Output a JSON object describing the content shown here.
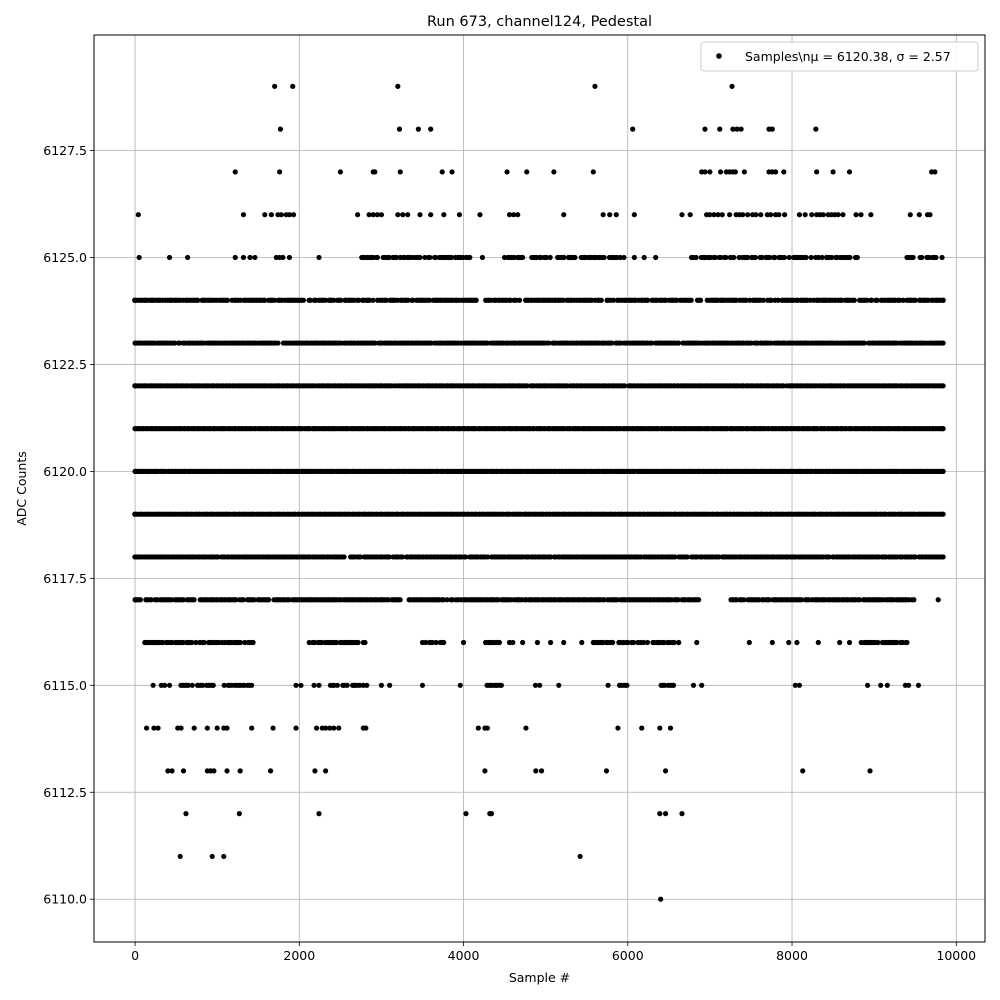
{
  "chart_data": {
    "type": "scatter",
    "title": "Run 673, channel124, Pedestal",
    "xlabel": "Sample #",
    "ylabel": "ADC Counts",
    "xlim": [
      -500,
      10350
    ],
    "ylim": [
      6109,
      6130.2
    ],
    "grid": true,
    "legend_placement": "top-right",
    "marker_color": "#000000",
    "x_ticks": [
      0,
      2000,
      4000,
      6000,
      8000,
      10000
    ],
    "x_tick_labels": [
      "0",
      "2000",
      "4000",
      "6000",
      "8000",
      "10000"
    ],
    "y_ticks": [
      6110.0,
      6112.5,
      6115.0,
      6117.5,
      6120.0,
      6122.5,
      6125.0,
      6127.5
    ],
    "y_tick_labels": [
      "6110.0",
      "6112.5",
      "6115.0",
      "6117.5",
      "6120.0",
      "6122.5",
      "6125.0",
      "6127.5"
    ],
    "legend_entry": "Samples\\nμ = 6120.38, σ = 2.57",
    "series": [
      {
        "name": "Samples\\nμ = 6120.38, σ = 2.57",
        "points": [
          [
            1700,
            6129
          ],
          [
            1920,
            6129
          ],
          [
            3200,
            6129
          ],
          [
            5600,
            6129
          ],
          [
            7270,
            6129
          ],
          [
            1770,
            6128
          ],
          [
            3220,
            6128
          ],
          [
            3450,
            6128
          ],
          [
            3600,
            6128
          ],
          [
            6060,
            6128
          ],
          [
            6940,
            6128
          ],
          [
            7120,
            6128
          ],
          [
            7280,
            6128
          ],
          [
            7330,
            6128
          ],
          [
            7380,
            6128
          ],
          [
            7720,
            6128
          ],
          [
            7760,
            6128
          ],
          [
            8290,
            6128
          ],
          [
            1220,
            6127
          ],
          [
            1760,
            6127
          ],
          [
            2500,
            6127
          ],
          [
            2900,
            6127
          ],
          [
            2920,
            6127
          ],
          [
            3230,
            6127
          ],
          [
            3740,
            6127
          ],
          [
            3860,
            6127
          ],
          [
            4530,
            6127
          ],
          [
            4770,
            6127
          ],
          [
            5100,
            6127
          ],
          [
            5580,
            6127
          ],
          [
            6900,
            6127
          ],
          [
            6940,
            6127
          ],
          [
            7000,
            6127
          ],
          [
            7130,
            6127
          ],
          [
            7200,
            6127
          ],
          [
            7240,
            6127
          ],
          [
            7280,
            6127
          ],
          [
            7310,
            6127
          ],
          [
            7420,
            6127
          ],
          [
            7720,
            6127
          ],
          [
            7760,
            6127
          ],
          [
            7800,
            6127
          ],
          [
            7900,
            6127
          ],
          [
            8300,
            6127
          ],
          [
            8500,
            6127
          ],
          [
            8700,
            6127
          ],
          [
            9700,
            6127
          ],
          [
            9740,
            6127
          ],
          [
            40,
            6126
          ],
          [
            1320,
            6126
          ],
          [
            1580,
            6126
          ],
          [
            1660,
            6126
          ],
          [
            1740,
            6126
          ],
          [
            1780,
            6126
          ],
          [
            1840,
            6126
          ],
          [
            1880,
            6126
          ],
          [
            1930,
            6126
          ],
          [
            2710,
            6126
          ],
          [
            2850,
            6126
          ],
          [
            2900,
            6126
          ],
          [
            2950,
            6126
          ],
          [
            3000,
            6126
          ],
          [
            3200,
            6126
          ],
          [
            3260,
            6126
          ],
          [
            3320,
            6126
          ],
          [
            3470,
            6126
          ],
          [
            3600,
            6126
          ],
          [
            3760,
            6126
          ],
          [
            3950,
            6126
          ],
          [
            4200,
            6126
          ],
          [
            4560,
            6126
          ],
          [
            4610,
            6126
          ],
          [
            4660,
            6126
          ],
          [
            5220,
            6126
          ],
          [
            5700,
            6126
          ],
          [
            5780,
            6126
          ],
          [
            5860,
            6126
          ],
          [
            6080,
            6126
          ],
          [
            6660,
            6126
          ],
          [
            6760,
            6126
          ],
          [
            6960,
            6126
          ],
          [
            7000,
            6126
          ],
          [
            7050,
            6126
          ],
          [
            7100,
            6126
          ],
          [
            7150,
            6126
          ],
          [
            7240,
            6126
          ],
          [
            7320,
            6126
          ],
          [
            7360,
            6126
          ],
          [
            7400,
            6126
          ],
          [
            7460,
            6126
          ],
          [
            7520,
            6126
          ],
          [
            7560,
            6126
          ],
          [
            7620,
            6126
          ],
          [
            7700,
            6126
          ],
          [
            7740,
            6126
          ],
          [
            7800,
            6126
          ],
          [
            7840,
            6126
          ],
          [
            7910,
            6126
          ],
          [
            8090,
            6126
          ],
          [
            8160,
            6126
          ],
          [
            8240,
            6126
          ],
          [
            8300,
            6126
          ],
          [
            8340,
            6126
          ],
          [
            8380,
            6126
          ],
          [
            8440,
            6126
          ],
          [
            8480,
            6126
          ],
          [
            8520,
            6126
          ],
          [
            8560,
            6126
          ],
          [
            8620,
            6126
          ],
          [
            8780,
            6126
          ],
          [
            8840,
            6126
          ],
          [
            8960,
            6126
          ],
          [
            9440,
            6126
          ],
          [
            9550,
            6126
          ],
          [
            9650,
            6126
          ],
          [
            9680,
            6126
          ],
          [
            50,
            6125
          ],
          [
            420,
            6125
          ],
          [
            640,
            6125
          ],
          [
            1220,
            6125
          ],
          [
            1320,
            6125
          ],
          [
            1400,
            6125
          ],
          [
            1460,
            6125
          ],
          [
            1720,
            6125
          ],
          [
            1760,
            6125
          ],
          [
            1800,
            6125
          ],
          [
            1880,
            6125
          ],
          [
            2240,
            6125
          ],
          [
            2900,
            6125
          ],
          [
            4230,
            6125
          ],
          [
            5280,
            6125
          ],
          [
            6080,
            6125
          ],
          [
            6200,
            6125
          ],
          [
            6340,
            6125
          ],
          [
            0,
            6124
          ],
          [
            9840,
            6124
          ],
          [
            0,
            6123
          ],
          [
            9840,
            6123
          ],
          [
            0,
            6122
          ],
          [
            9840,
            6122
          ],
          [
            0,
            6121
          ],
          [
            9840,
            6121
          ],
          [
            0,
            6120
          ],
          [
            9840,
            6120
          ],
          [
            0,
            6119
          ],
          [
            9840,
            6119
          ],
          [
            0,
            6118
          ],
          [
            9840,
            6118
          ],
          [
            0,
            6117
          ],
          [
            9780,
            6117
          ],
          [
            120,
            6116
          ],
          [
            2800,
            6116
          ],
          [
            3500,
            6116
          ],
          [
            4000,
            6116
          ],
          [
            4560,
            6116
          ],
          [
            4600,
            6116
          ],
          [
            4720,
            6116
          ],
          [
            4900,
            6116
          ],
          [
            5060,
            6116
          ],
          [
            5220,
            6116
          ],
          [
            5440,
            6116
          ],
          [
            5700,
            6116
          ],
          [
            6620,
            6116
          ],
          [
            6840,
            6116
          ],
          [
            7480,
            6116
          ],
          [
            7760,
            6116
          ],
          [
            7960,
            6116
          ],
          [
            8060,
            6116
          ],
          [
            8320,
            6116
          ],
          [
            8580,
            6116
          ],
          [
            8700,
            6116
          ],
          [
            8950,
            6116
          ],
          [
            9130,
            6116
          ],
          [
            9400,
            6116
          ],
          [
            220,
            6115
          ],
          [
            320,
            6115
          ],
          [
            360,
            6115
          ],
          [
            420,
            6115
          ],
          [
            1960,
            6115
          ],
          [
            2020,
            6115
          ],
          [
            2180,
            6115
          ],
          [
            2240,
            6115
          ],
          [
            3000,
            6115
          ],
          [
            3100,
            6115
          ],
          [
            3500,
            6115
          ],
          [
            3960,
            6115
          ],
          [
            5160,
            6115
          ],
          [
            5760,
            6115
          ],
          [
            5920,
            6115
          ],
          [
            6800,
            6115
          ],
          [
            6900,
            6115
          ],
          [
            8040,
            6115
          ],
          [
            8090,
            6115
          ],
          [
            8920,
            6115
          ],
          [
            9080,
            6115
          ],
          [
            9160,
            6115
          ],
          [
            9380,
            6115
          ],
          [
            9420,
            6115
          ],
          [
            9540,
            6115
          ],
          [
            140,
            6114
          ],
          [
            230,
            6114
          ],
          [
            280,
            6114
          ],
          [
            520,
            6114
          ],
          [
            560,
            6114
          ],
          [
            720,
            6114
          ],
          [
            880,
            6114
          ],
          [
            1000,
            6114
          ],
          [
            1080,
            6114
          ],
          [
            1120,
            6114
          ],
          [
            1420,
            6114
          ],
          [
            1680,
            6114
          ],
          [
            1960,
            6114
          ],
          [
            2210,
            6114
          ],
          [
            2280,
            6114
          ],
          [
            2320,
            6114
          ],
          [
            2370,
            6114
          ],
          [
            2420,
            6114
          ],
          [
            2480,
            6114
          ],
          [
            2780,
            6114
          ],
          [
            2810,
            6114
          ],
          [
            4180,
            6114
          ],
          [
            4260,
            6114
          ],
          [
            4290,
            6114
          ],
          [
            4760,
            6114
          ],
          [
            5880,
            6114
          ],
          [
            6170,
            6114
          ],
          [
            6390,
            6114
          ],
          [
            6520,
            6114
          ],
          [
            400,
            6113
          ],
          [
            450,
            6113
          ],
          [
            590,
            6113
          ],
          [
            880,
            6113
          ],
          [
            920,
            6113
          ],
          [
            960,
            6113
          ],
          [
            1120,
            6113
          ],
          [
            1280,
            6113
          ],
          [
            1650,
            6113
          ],
          [
            2190,
            6113
          ],
          [
            2320,
            6113
          ],
          [
            4260,
            6113
          ],
          [
            4880,
            6113
          ],
          [
            4950,
            6113
          ],
          [
            5740,
            6113
          ],
          [
            6460,
            6113
          ],
          [
            8130,
            6113
          ],
          [
            8950,
            6113
          ],
          [
            620,
            6112
          ],
          [
            1270,
            6112
          ],
          [
            2240,
            6112
          ],
          [
            4030,
            6112
          ],
          [
            4320,
            6112
          ],
          [
            4340,
            6112
          ],
          [
            6390,
            6112
          ],
          [
            6460,
            6112
          ],
          [
            6660,
            6112
          ],
          [
            550,
            6111
          ],
          [
            940,
            6111
          ],
          [
            1080,
            6111
          ],
          [
            5420,
            6111
          ],
          [
            6400,
            6110
          ]
        ],
        "dense_rows": [
          {
            "y": 6125,
            "ranges": [
              [
                2760,
                4100
              ],
              [
                4500,
                5060
              ],
              [
                5120,
                5980
              ],
              [
                6760,
                8180
              ],
              [
                8240,
                8800
              ],
              [
                9360,
                9840
              ]
            ],
            "density": 0.7
          },
          {
            "y": 6124,
            "ranges": [
              [
                0,
                9840
              ]
            ],
            "density": 0.85
          },
          {
            "y": 6123,
            "ranges": [
              [
                0,
                9840
              ]
            ],
            "density": 0.95
          },
          {
            "y": 6122,
            "ranges": [
              [
                0,
                9840
              ]
            ],
            "density": 0.98
          },
          {
            "y": 6121,
            "ranges": [
              [
                0,
                9840
              ]
            ],
            "density": 1.0
          },
          {
            "y": 6120,
            "ranges": [
              [
                0,
                9840
              ]
            ],
            "density": 1.0
          },
          {
            "y": 6119,
            "ranges": [
              [
                0,
                9840
              ]
            ],
            "density": 1.0
          },
          {
            "y": 6118,
            "ranges": [
              [
                0,
                9840
              ]
            ],
            "density": 0.98
          },
          {
            "y": 6117,
            "ranges": [
              [
                0,
                3240
              ],
              [
                3340,
                6860
              ],
              [
                7260,
                9500
              ]
            ],
            "density": 0.9
          },
          {
            "y": 6116,
            "ranges": [
              [
                120,
                1440
              ],
              [
                2100,
                2800
              ],
              [
                3540,
                3760
              ],
              [
                4240,
                4440
              ],
              [
                5580,
                6620
              ],
              [
                8820,
                9400
              ]
            ],
            "density": 0.8
          },
          {
            "y": 6115,
            "ranges": [
              [
                560,
                1420
              ],
              [
                2380,
                2840
              ],
              [
                4280,
                4460
              ],
              [
                4860,
                4960
              ],
              [
                5900,
                6000
              ],
              [
                6380,
                6560
              ]
            ],
            "density": 0.65
          }
        ]
      }
    ]
  }
}
